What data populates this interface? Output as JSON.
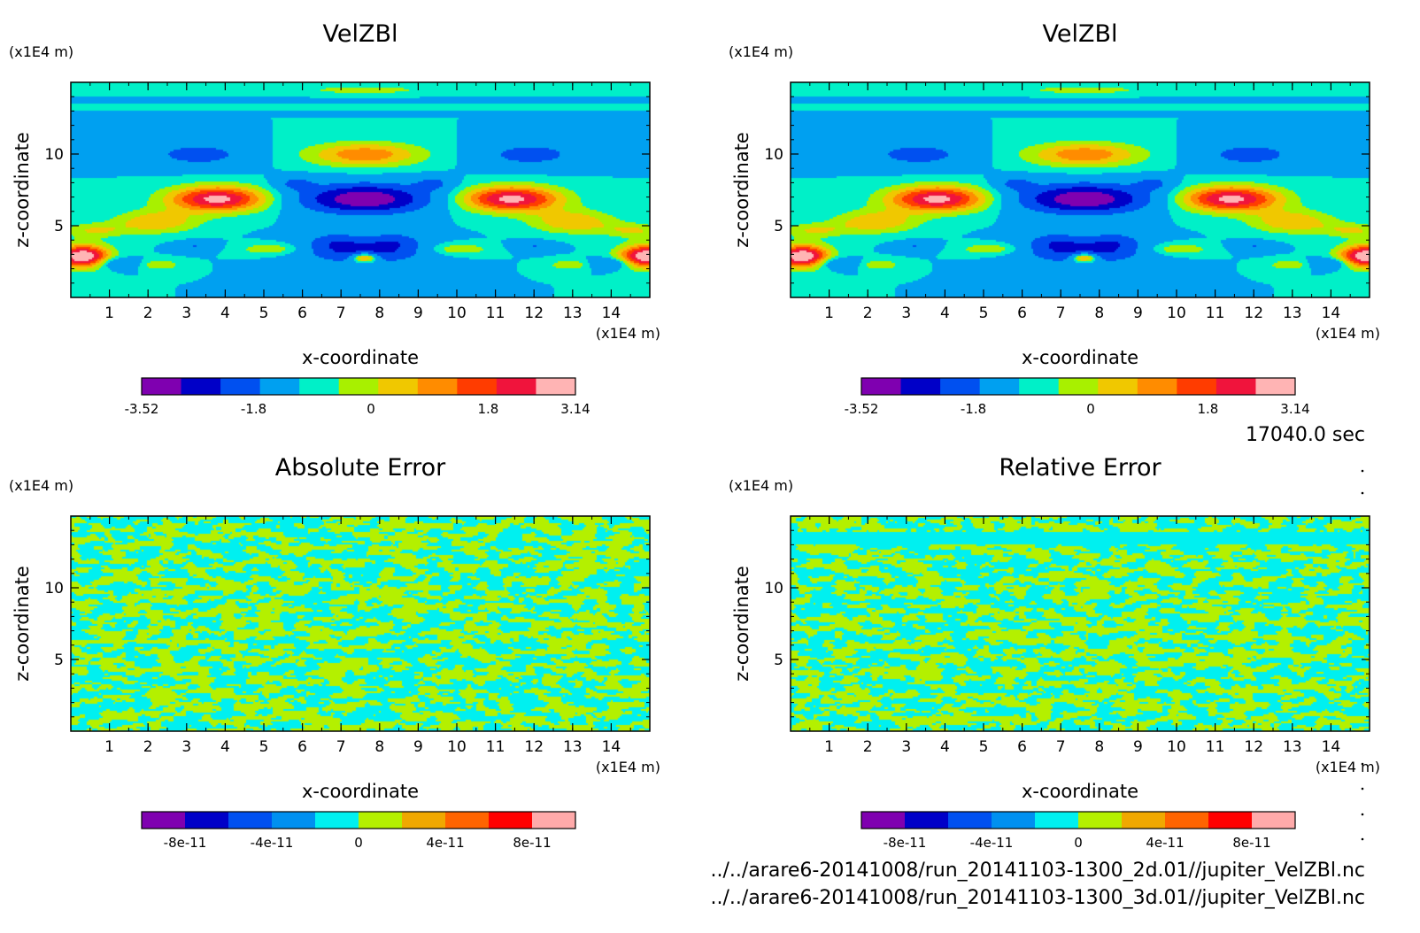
{
  "colors": {
    "velocity_levels": [
      "#7f00b0",
      "#0000c8",
      "#0050f0",
      "#00a0f0",
      "#00f0c8",
      "#a8f000",
      "#f0c800",
      "#ff8c00",
      "#ff3c00",
      "#f0143c",
      "#ffb4b4"
    ],
    "error_levels": [
      "#7f00b0",
      "#0000c8",
      "#0050f0",
      "#0090f0",
      "#00f0f0",
      "#b4f000",
      "#f0a800",
      "#ff6400",
      "#ff0000",
      "#ffaaaa"
    ]
  },
  "timestamp": "17040.0 sec",
  "files": [
    "../../arare6-20141008/run_20141103-1300_2d.01//jupiter_VelZBl.nc",
    "../../arare6-20141008/run_20141103-1300_3d.01//jupiter_VelZBl.nc"
  ],
  "chart_data": [
    {
      "type": "heatmap",
      "title": "VelZBl",
      "xlabel": "x-coordinate",
      "ylabel": "z-coordinate",
      "xunit": "(x1E4 m)",
      "yunit": "(x1E4 m)",
      "xlim": [
        0,
        15
      ],
      "ylim": [
        0,
        15
      ],
      "xticks": [
        1,
        2,
        3,
        4,
        5,
        6,
        7,
        8,
        9,
        10,
        11,
        12,
        13,
        14
      ],
      "yticks": [
        5,
        10
      ],
      "colorbar": {
        "range": [
          -3.52,
          3.14
        ],
        "ticks": [
          -3.52,
          -1.8,
          0,
          1.8,
          3.14
        ],
        "tick_labels": [
          "-3.52",
          "-1.8",
          "0",
          "1.8",
          "3.14"
        ],
        "palette": "velocity_levels"
      },
      "field": "velocity"
    },
    {
      "type": "heatmap",
      "title": "VelZBl",
      "xlabel": "x-coordinate",
      "ylabel": "z-coordinate",
      "xunit": "(x1E4 m)",
      "yunit": "(x1E4 m)",
      "xlim": [
        0,
        15
      ],
      "ylim": [
        0,
        15
      ],
      "xticks": [
        1,
        2,
        3,
        4,
        5,
        6,
        7,
        8,
        9,
        10,
        11,
        12,
        13,
        14
      ],
      "yticks": [
        5,
        10
      ],
      "colorbar": {
        "range": [
          -3.52,
          3.14
        ],
        "ticks": [
          -3.52,
          -1.8,
          0,
          1.8,
          3.14
        ],
        "tick_labels": [
          "-3.52",
          "-1.8",
          "0",
          "1.8",
          "3.14"
        ],
        "palette": "velocity_levels"
      },
      "field": "velocity"
    },
    {
      "type": "heatmap",
      "title": "Absolute Error",
      "xlabel": "x-coordinate",
      "ylabel": "z-coordinate",
      "xunit": "(x1E4 m)",
      "yunit": "(x1E4 m)",
      "xlim": [
        0,
        15
      ],
      "ylim": [
        0,
        15
      ],
      "xticks": [
        1,
        2,
        3,
        4,
        5,
        6,
        7,
        8,
        9,
        10,
        11,
        12,
        13,
        14
      ],
      "yticks": [
        5,
        10
      ],
      "colorbar": {
        "range": [
          -1e-10,
          1e-10
        ],
        "ticks": [
          -8e-11,
          -4e-11,
          0,
          4e-11,
          8e-11
        ],
        "tick_labels": [
          "-8e-11",
          "-4e-11",
          "0",
          "4e-11",
          "8e-11"
        ],
        "palette": "error_levels"
      },
      "field": "error"
    },
    {
      "type": "heatmap",
      "title": "Relative Error",
      "xlabel": "x-coordinate",
      "ylabel": "z-coordinate",
      "xunit": "(x1E4 m)",
      "yunit": "(x1E4 m)",
      "xlim": [
        0,
        15
      ],
      "ylim": [
        0,
        15
      ],
      "xticks": [
        1,
        2,
        3,
        4,
        5,
        6,
        7,
        8,
        9,
        10,
        11,
        12,
        13,
        14
      ],
      "yticks": [
        5,
        10
      ],
      "colorbar": {
        "range": [
          -1e-10,
          1e-10
        ],
        "ticks": [
          -8e-11,
          -4e-11,
          0,
          4e-11,
          8e-11
        ],
        "tick_labels": [
          "-8e-11",
          "-4e-11",
          "0",
          "4e-11",
          "8e-11"
        ],
        "palette": "error_levels"
      },
      "field": "error"
    }
  ]
}
